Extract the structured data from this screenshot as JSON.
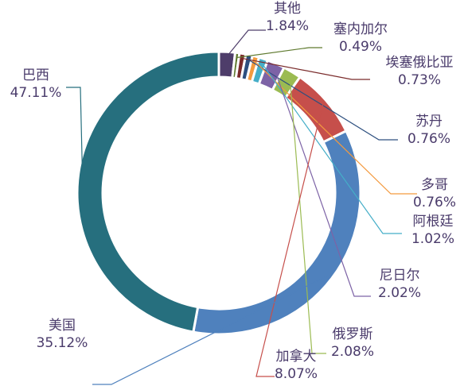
{
  "chart_data": {
    "type": "pie",
    "variant": "donut",
    "title": "",
    "legend": "none",
    "slices": [
      {
        "name": "其他",
        "value": 1.84,
        "value_label": "1.84%",
        "color": "#4e3d6a"
      },
      {
        "name": "塞内加尔",
        "value": 0.49,
        "value_label": "0.49%",
        "color": "#5f7a2f"
      },
      {
        "name": "埃塞俄比亚",
        "value": 0.73,
        "value_label": "0.73%",
        "color": "#7a2b2b"
      },
      {
        "name": "苏丹",
        "value": 0.76,
        "value_label": "0.76%",
        "color": "#2d4f7f"
      },
      {
        "name": "多哥",
        "value": 0.76,
        "value_label": "0.76%",
        "color": "#f39a3f"
      },
      {
        "name": "阿根廷",
        "value": 1.02,
        "value_label": "1.02%",
        "color": "#45aec8"
      },
      {
        "name": "尼日尔",
        "value": 2.02,
        "value_label": "2.02%",
        "color": "#7d63a6"
      },
      {
        "name": "俄罗斯",
        "value": 2.08,
        "value_label": "2.08%",
        "color": "#9bbb52"
      },
      {
        "name": "加拿大",
        "value": 8.07,
        "value_label": "8.07%",
        "color": "#c64f4b"
      },
      {
        "name": "美国",
        "value": 35.12,
        "value_label": "35.12%",
        "color": "#4f81bd"
      },
      {
        "name": "巴西",
        "value": 47.11,
        "value_label": "47.11%",
        "color": "#266f7e"
      }
    ]
  }
}
